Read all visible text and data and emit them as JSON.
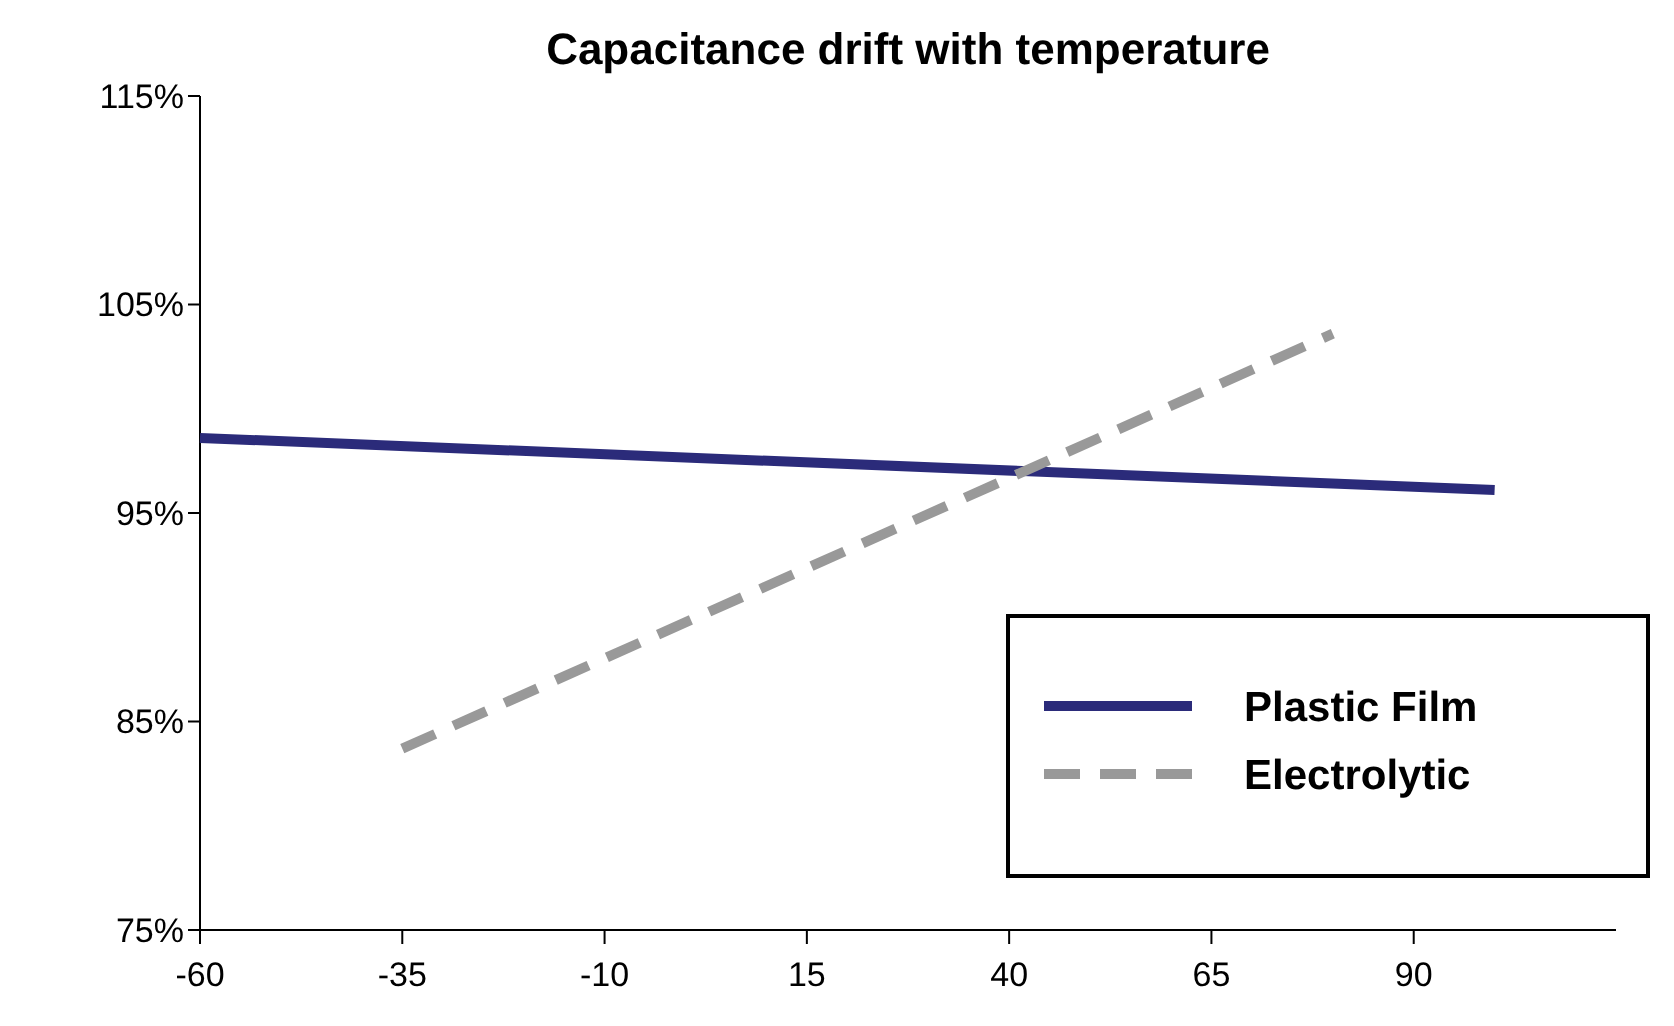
{
  "chart_data": {
    "type": "line",
    "title": "Capacitance drift with temperature",
    "xlim": [
      -60,
      115
    ],
    "xticks": [
      -60,
      -35,
      -10,
      15,
      40,
      65,
      90
    ],
    "ylim": [
      75,
      115
    ],
    "yticks": [
      {
        "value": 75,
        "label": "75%"
      },
      {
        "value": 85,
        "label": "85%"
      },
      {
        "value": 95,
        "label": "95%"
      },
      {
        "value": 105,
        "label": "105%"
      },
      {
        "value": 115,
        "label": "115%"
      }
    ],
    "legend": "bottom right",
    "grid": false,
    "marker": "none",
    "series": [
      {
        "name": "Plastic Film",
        "color": "#2b2b7a",
        "x": [
          -60,
          100
        ],
        "values": [
          98.6,
          96.1
        ],
        "line_style": "solid"
      },
      {
        "name": "Electrolytic",
        "color": "#999999",
        "x": [
          -35,
          80
        ],
        "values": [
          83.7,
          103.6
        ],
        "line_style": "dashed"
      }
    ]
  }
}
